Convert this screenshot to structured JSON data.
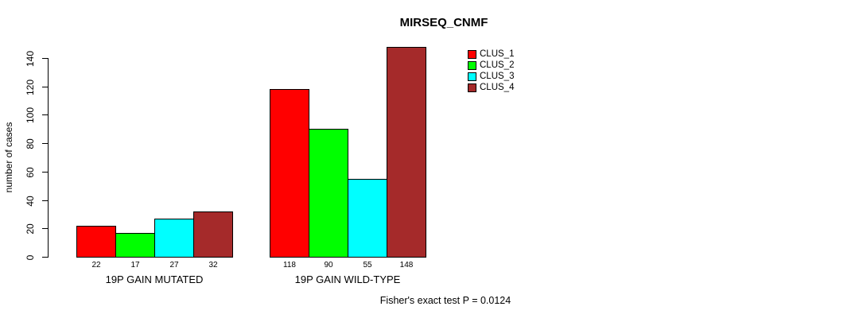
{
  "chart_data": {
    "type": "bar",
    "title": "MIRSEQ_CNMF",
    "xlabel": "",
    "ylabel": "number of cases",
    "categories": [
      "19P GAIN MUTATED",
      "19P GAIN WILD-TYPE"
    ],
    "series": [
      {
        "name": "CLUS_1",
        "color": "#ff0000",
        "values": [
          22,
          118
        ]
      },
      {
        "name": "CLUS_2",
        "color": "#00ff00",
        "values": [
          17,
          90
        ]
      },
      {
        "name": "CLUS_3",
        "color": "#00ffff",
        "values": [
          27,
          55
        ]
      },
      {
        "name": "CLUS_4",
        "color": "#a52a2a",
        "values": [
          32,
          148
        ]
      }
    ],
    "bar_value_labels": [
      [
        22,
        17,
        27,
        32
      ],
      [
        118,
        90,
        55,
        148
      ]
    ],
    "yticks": [
      0,
      20,
      40,
      60,
      80,
      100,
      120,
      140
    ],
    "ylim": [
      0,
      140
    ],
    "grid": false,
    "legend_position": "top-right",
    "legend_entries": [
      "CLUS_1",
      "CLUS_2",
      "CLUS_3",
      "CLUS_4"
    ],
    "annotation": "Fisher's exact test P = 0.0124"
  }
}
